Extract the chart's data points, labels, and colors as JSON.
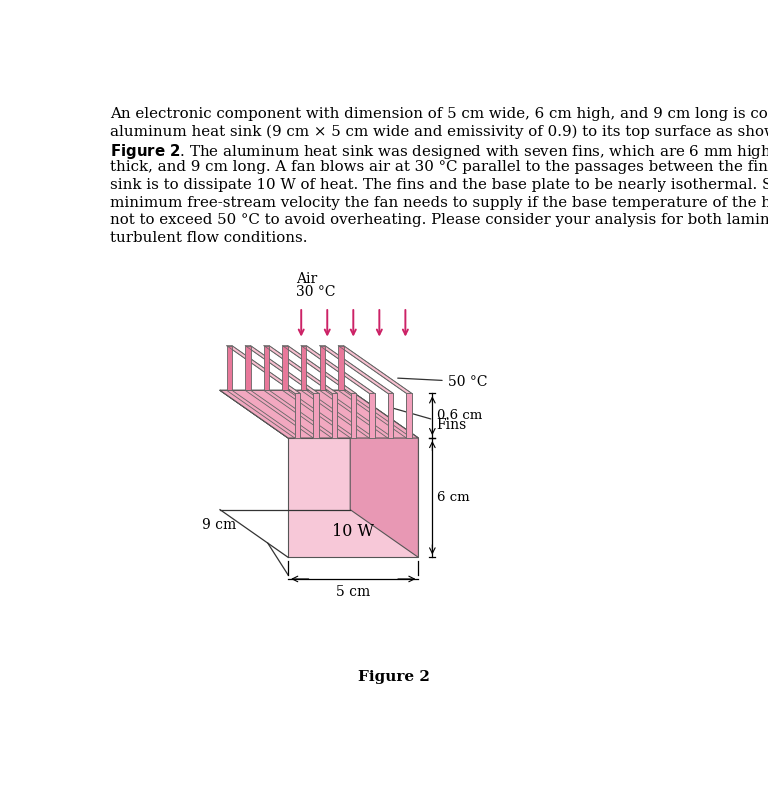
{
  "fig_width": 7.68,
  "fig_height": 7.95,
  "figure_label": "Figure 2",
  "air_label": "Air",
  "air_temp": "30 °C",
  "temp_50": "50 °C",
  "fins_label": "Fins",
  "dim_06": "0.6 cm",
  "dim_6": "6 cm",
  "dim_9": "9 cm",
  "dim_5": "5 cm",
  "power_label": "10 W",
  "fin_color_face": "#f2a0bc",
  "fin_color_side": "#e8789a",
  "fin_color_top": "#f7c0d0",
  "base_front_color": "#f7c8d8",
  "base_top_color": "#f2a8c0",
  "base_right_color": "#e898b4",
  "arrow_color": "#cc2266",
  "background": "#ffffff",
  "num_fins": 7,
  "text_fontsize": 10.8,
  "text_linespacing": 1.58
}
